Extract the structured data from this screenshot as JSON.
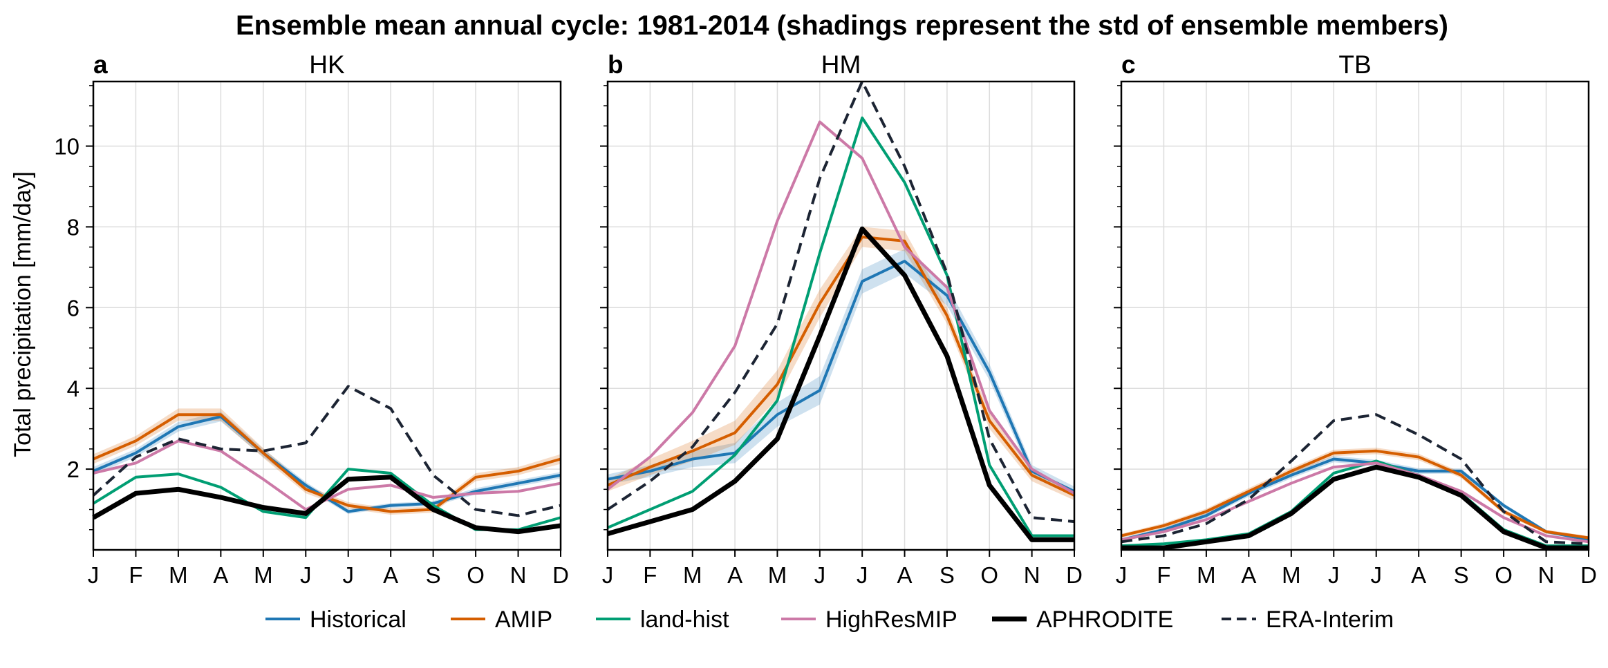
{
  "title": "Ensemble mean annual cycle: 1981-2014 (shadings represent the std of ensemble members)",
  "ylabel": "Total precipitation [mm/day]",
  "legend": [
    {
      "key": "historical",
      "label": "Historical",
      "color": "#1f77b4",
      "style": "solid",
      "width": "normal"
    },
    {
      "key": "amip",
      "label": "AMIP",
      "color": "#d55e00",
      "style": "solid",
      "width": "normal"
    },
    {
      "key": "landhist",
      "label": "land-hist",
      "color": "#009e73",
      "style": "solid",
      "width": "normal"
    },
    {
      "key": "highres",
      "label": "HighResMIP",
      "color": "#cc79a7",
      "style": "solid",
      "width": "normal"
    },
    {
      "key": "aphro",
      "label": "APHRODITE",
      "color": "#000000",
      "style": "solid",
      "width": "thick"
    },
    {
      "key": "era",
      "label": "ERA-Interim",
      "color": "#1c2433",
      "style": "dashed",
      "width": "normal"
    }
  ],
  "chart_data": [
    {
      "type": "line",
      "panel_label": "a",
      "title": "HK",
      "categories": [
        "J",
        "F",
        "M",
        "A",
        "M",
        "J",
        "J",
        "A",
        "S",
        "O",
        "N",
        "D"
      ],
      "ylim": [
        0,
        11.6
      ],
      "yticks": [
        2,
        4,
        6,
        8,
        10
      ],
      "grid": true,
      "series": [
        {
          "name": "Historical",
          "values": [
            1.95,
            2.4,
            3.05,
            3.3,
            2.4,
            1.6,
            0.95,
            1.1,
            1.15,
            1.45,
            1.65,
            1.85
          ]
        },
        {
          "name": "AMIP",
          "values": [
            2.25,
            2.7,
            3.35,
            3.35,
            2.4,
            1.5,
            1.1,
            0.95,
            1.0,
            1.8,
            1.95,
            2.25
          ]
        },
        {
          "name": "land-hist",
          "values": [
            1.15,
            1.8,
            1.88,
            1.55,
            0.95,
            0.8,
            2.0,
            1.9,
            1.1,
            0.5,
            0.5,
            0.8
          ]
        },
        {
          "name": "HighResMIP",
          "values": [
            1.9,
            2.15,
            2.7,
            2.45,
            1.75,
            1.0,
            1.5,
            1.6,
            1.3,
            1.4,
            1.45,
            1.65
          ]
        },
        {
          "name": "APHRODITE",
          "values": [
            0.8,
            1.4,
            1.5,
            1.3,
            1.05,
            0.9,
            1.75,
            1.8,
            1.0,
            0.55,
            0.45,
            0.6
          ]
        },
        {
          "name": "ERA-Interim",
          "values": [
            1.35,
            2.3,
            2.75,
            2.5,
            2.45,
            2.65,
            4.05,
            3.5,
            1.85,
            1.0,
            0.85,
            1.1
          ]
        }
      ],
      "std_shading": {
        "Historical": [
          0.1,
          0.1,
          0.12,
          0.12,
          0.1,
          0.08,
          0.06,
          0.06,
          0.06,
          0.08,
          0.08,
          0.08
        ],
        "AMIP": [
          0.12,
          0.12,
          0.15,
          0.15,
          0.12,
          0.1,
          0.08,
          0.08,
          0.08,
          0.1,
          0.1,
          0.12
        ]
      }
    },
    {
      "type": "line",
      "panel_label": "b",
      "title": "HM",
      "categories": [
        "J",
        "F",
        "M",
        "A",
        "M",
        "J",
        "J",
        "A",
        "S",
        "O",
        "N",
        "D"
      ],
      "ylim": [
        0,
        11.6
      ],
      "yticks": [
        2,
        4,
        6,
        8,
        10
      ],
      "grid": true,
      "series": [
        {
          "name": "Historical",
          "values": [
            1.75,
            1.95,
            2.25,
            2.4,
            3.35,
            3.95,
            6.65,
            7.15,
            6.3,
            4.4,
            1.95,
            1.45
          ]
        },
        {
          "name": "AMIP",
          "values": [
            1.6,
            2.05,
            2.45,
            2.9,
            4.1,
            6.1,
            7.75,
            7.65,
            5.8,
            3.2,
            1.85,
            1.35
          ]
        },
        {
          "name": "land-hist",
          "values": [
            0.55,
            1.0,
            1.45,
            2.35,
            3.7,
            7.35,
            10.7,
            9.1,
            6.8,
            2.1,
            0.35,
            0.35
          ]
        },
        {
          "name": "HighResMIP",
          "values": [
            1.5,
            2.3,
            3.4,
            5.05,
            8.15,
            10.6,
            9.7,
            7.5,
            6.5,
            3.45,
            2.0,
            1.4
          ]
        },
        {
          "name": "APHRODITE",
          "values": [
            0.4,
            0.7,
            1.0,
            1.7,
            2.75,
            5.3,
            7.95,
            6.8,
            4.8,
            1.6,
            0.25,
            0.25
          ]
        },
        {
          "name": "ERA-Interim",
          "values": [
            1.0,
            1.7,
            2.55,
            3.9,
            5.6,
            9.2,
            11.6,
            9.5,
            6.85,
            2.75,
            0.8,
            0.7
          ]
        }
      ],
      "std_shading": {
        "Historical": [
          0.12,
          0.15,
          0.2,
          0.25,
          0.3,
          0.35,
          0.3,
          0.3,
          0.25,
          0.2,
          0.15,
          0.12
        ],
        "AMIP": [
          0.15,
          0.2,
          0.25,
          0.3,
          0.35,
          0.35,
          0.25,
          0.25,
          0.2,
          0.2,
          0.15,
          0.12
        ]
      }
    },
    {
      "type": "line",
      "panel_label": "c",
      "title": "TB",
      "categories": [
        "J",
        "F",
        "M",
        "A",
        "M",
        "J",
        "J",
        "A",
        "S",
        "O",
        "N",
        "D"
      ],
      "ylim": [
        0,
        11.6
      ],
      "yticks": [
        2,
        4,
        6,
        8,
        10
      ],
      "grid": true,
      "series": [
        {
          "name": "Historical",
          "values": [
            0.25,
            0.5,
            0.85,
            1.4,
            1.85,
            2.25,
            2.15,
            1.95,
            1.95,
            1.1,
            0.45,
            0.25
          ]
        },
        {
          "name": "AMIP",
          "values": [
            0.35,
            0.6,
            0.95,
            1.45,
            1.95,
            2.4,
            2.45,
            2.3,
            1.85,
            0.95,
            0.45,
            0.3
          ]
        },
        {
          "name": "land-hist",
          "values": [
            0.1,
            0.15,
            0.25,
            0.4,
            0.95,
            1.9,
            2.2,
            1.85,
            1.4,
            0.5,
            0.1,
            0.1
          ]
        },
        {
          "name": "HighResMIP",
          "values": [
            0.25,
            0.45,
            0.75,
            1.2,
            1.65,
            2.05,
            2.15,
            1.85,
            1.45,
            0.8,
            0.35,
            0.2
          ]
        },
        {
          "name": "APHRODITE",
          "values": [
            0.05,
            0.05,
            0.2,
            0.35,
            0.9,
            1.75,
            2.05,
            1.8,
            1.35,
            0.45,
            0.05,
            0.05
          ]
        },
        {
          "name": "ERA-Interim",
          "values": [
            0.2,
            0.35,
            0.65,
            1.25,
            2.2,
            3.2,
            3.35,
            2.85,
            2.25,
            0.95,
            0.2,
            0.15
          ]
        }
      ],
      "std_shading": {
        "Historical": [
          0.04,
          0.05,
          0.06,
          0.08,
          0.08,
          0.08,
          0.08,
          0.07,
          0.06,
          0.05,
          0.04,
          0.04
        ],
        "AMIP": [
          0.05,
          0.06,
          0.07,
          0.08,
          0.08,
          0.08,
          0.08,
          0.08,
          0.07,
          0.06,
          0.05,
          0.04
        ]
      }
    }
  ]
}
